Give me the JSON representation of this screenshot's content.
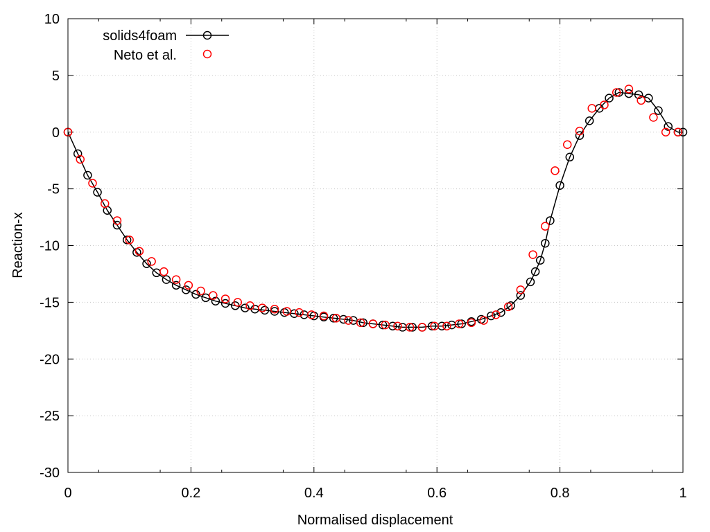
{
  "chart_data": {
    "type": "scatter",
    "xlabel": "Normalised displacement",
    "ylabel": "Reaction-x",
    "xlim": [
      0,
      1
    ],
    "ylim": [
      -30,
      10
    ],
    "grid": true,
    "legend_position": "top-left",
    "x_ticks": [
      {
        "value": 0,
        "label": "0"
      },
      {
        "value": 0.2,
        "label": "0.2"
      },
      {
        "value": 0.4,
        "label": "0.4"
      },
      {
        "value": 0.6,
        "label": "0.6"
      },
      {
        "value": 0.8,
        "label": "0.8"
      },
      {
        "value": 1,
        "label": "1"
      }
    ],
    "y_ticks": [
      {
        "value": 10,
        "label": "10"
      },
      {
        "value": 5,
        "label": "5"
      },
      {
        "value": 0,
        "label": "0"
      },
      {
        "value": -5,
        "label": "-5"
      },
      {
        "value": -10,
        "label": "-10"
      },
      {
        "value": -15,
        "label": "-15"
      },
      {
        "value": -20,
        "label": "-20"
      },
      {
        "value": -25,
        "label": "-25"
      },
      {
        "value": -30,
        "label": "-30"
      }
    ],
    "series": [
      {
        "name": "solids4foam",
        "style": "line-with-circles",
        "color": "#000000",
        "x": [
          0,
          0.016,
          0.032,
          0.048,
          0.064,
          0.08,
          0.096,
          0.112,
          0.128,
          0.144,
          0.16,
          0.176,
          0.192,
          0.208,
          0.224,
          0.24,
          0.256,
          0.272,
          0.288,
          0.304,
          0.32,
          0.336,
          0.352,
          0.368,
          0.384,
          0.4,
          0.416,
          0.432,
          0.448,
          0.464,
          0.48,
          0.496,
          0.512,
          0.528,
          0.544,
          0.56,
          0.576,
          0.592,
          0.608,
          0.624,
          0.64,
          0.656,
          0.672,
          0.688,
          0.704,
          0.72,
          0.736,
          0.752,
          0.76,
          0.768,
          0.776,
          0.784,
          0.8,
          0.816,
          0.832,
          0.848,
          0.864,
          0.88,
          0.896,
          0.912,
          0.928,
          0.944,
          0.96,
          0.976,
          0.992,
          1.0
        ],
        "y": [
          0,
          -1.9,
          -3.8,
          -5.3,
          -6.9,
          -8.2,
          -9.5,
          -10.6,
          -11.6,
          -12.4,
          -13.0,
          -13.5,
          -13.9,
          -14.3,
          -14.6,
          -14.9,
          -15.1,
          -15.3,
          -15.5,
          -15.6,
          -15.7,
          -15.8,
          -15.9,
          -16.0,
          -16.1,
          -16.2,
          -16.3,
          -16.4,
          -16.5,
          -16.6,
          -16.8,
          -16.9,
          -17.0,
          -17.1,
          -17.2,
          -17.2,
          -17.2,
          -17.1,
          -17.1,
          -17.0,
          -16.9,
          -16.7,
          -16.5,
          -16.2,
          -15.9,
          -15.3,
          -14.4,
          -13.2,
          -12.3,
          -11.3,
          -9.8,
          -7.8,
          -4.7,
          -2.2,
          -0.3,
          1.0,
          2.1,
          3.0,
          3.5,
          3.4,
          3.3,
          3.0,
          1.9,
          0.5,
          0.0,
          0.0
        ]
      },
      {
        "name": "Neto et al.",
        "style": "circles",
        "color": "#ff0000",
        "x": [
          0,
          0.02,
          0.04,
          0.06,
          0.08,
          0.1,
          0.116,
          0.136,
          0.156,
          0.176,
          0.196,
          0.216,
          0.236,
          0.256,
          0.276,
          0.296,
          0.316,
          0.336,
          0.356,
          0.376,
          0.396,
          0.416,
          0.436,
          0.456,
          0.476,
          0.496,
          0.516,
          0.536,
          0.556,
          0.576,
          0.596,
          0.616,
          0.636,
          0.656,
          0.676,
          0.696,
          0.716,
          0.736,
          0.756,
          0.776,
          0.792,
          0.812,
          0.832,
          0.852,
          0.872,
          0.892,
          0.912,
          0.932,
          0.952,
          0.972,
          0.992
        ],
        "y": [
          0,
          -2.4,
          -4.5,
          -6.3,
          -7.8,
          -9.5,
          -10.5,
          -11.4,
          -12.3,
          -13.0,
          -13.5,
          -14.0,
          -14.4,
          -14.7,
          -15.0,
          -15.3,
          -15.5,
          -15.6,
          -15.8,
          -15.9,
          -16.1,
          -16.2,
          -16.4,
          -16.6,
          -16.8,
          -16.9,
          -17.0,
          -17.1,
          -17.2,
          -17.2,
          -17.1,
          -17.1,
          -16.9,
          -16.8,
          -16.6,
          -16.1,
          -15.4,
          -13.9,
          -10.8,
          -8.3,
          -3.4,
          -1.1,
          0.1,
          2.1,
          2.4,
          3.5,
          3.8,
          2.8,
          1.3,
          0.0,
          0.0
        ]
      }
    ]
  }
}
